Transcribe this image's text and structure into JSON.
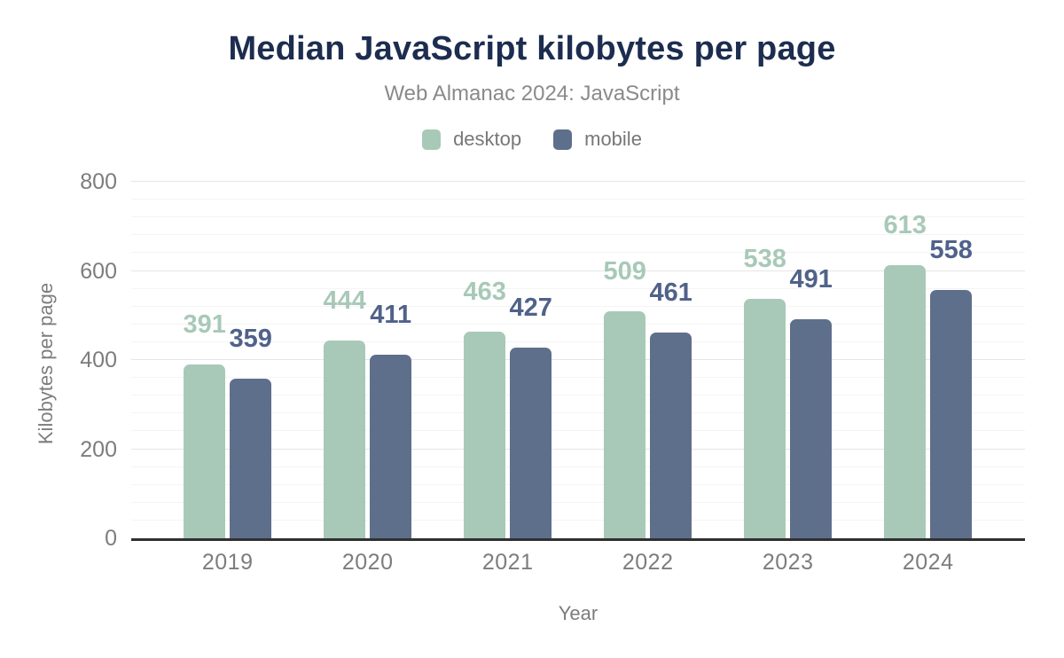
{
  "chart_data": {
    "type": "bar",
    "title": "Median JavaScript kilobytes per page",
    "subtitle": "Web Almanac 2024: JavaScript",
    "xlabel": "Year",
    "ylabel": "Kilobytes per page",
    "categories": [
      "2019",
      "2020",
      "2021",
      "2022",
      "2023",
      "2024"
    ],
    "series": [
      {
        "name": "desktop",
        "color": "#a8c9b8",
        "label_color": "#a8c9b8",
        "values": [
          391,
          444,
          463,
          509,
          538,
          613
        ]
      },
      {
        "name": "mobile",
        "color": "#5e6f8c",
        "label_color": "#50628a",
        "values": [
          359,
          411,
          427,
          461,
          491,
          558
        ]
      }
    ],
    "ylim": [
      0,
      800
    ],
    "y_ticks": [
      0,
      200,
      400,
      600,
      800
    ],
    "minor_grid_step": 40,
    "major_grid_step": 200,
    "grid": true,
    "legend_position": "top",
    "data_labels": true,
    "colors": {
      "title": "#1c2d4f",
      "subtitle": "#8a8a8a",
      "axis_text": "#7d7d7d",
      "axis_line": "#303030"
    }
  }
}
